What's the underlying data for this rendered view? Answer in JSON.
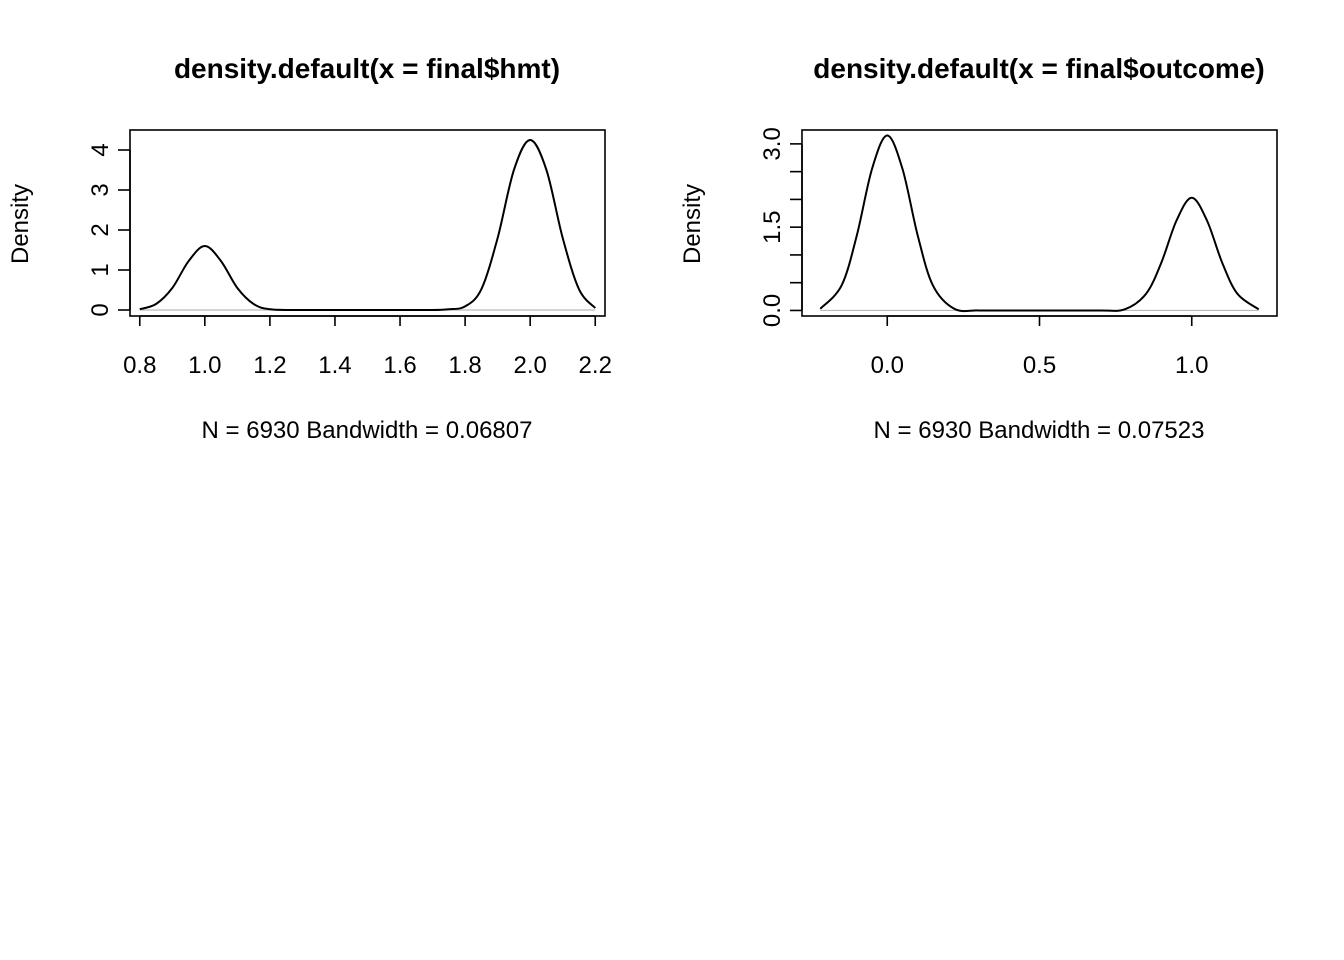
{
  "chart_data": [
    {
      "type": "line",
      "title": "density.default(x = final$hmt)",
      "xlabel": "N = 6930   Bandwidth = 0.06807",
      "ylabel": "Density",
      "xlim": [
        0.77,
        2.23
      ],
      "ylim": [
        -0.15,
        4.5
      ],
      "xticks": [
        0.8,
        1.0,
        1.2,
        1.4,
        1.6,
        1.8,
        2.0,
        2.2
      ],
      "xtick_labels": [
        "0.8",
        "1.0",
        "1.2",
        "1.4",
        "1.6",
        "1.8",
        "2.0",
        "2.2"
      ],
      "yticks": [
        0,
        1,
        2,
        3,
        4
      ],
      "ytick_labels": [
        "0",
        "1",
        "2",
        "3",
        "4"
      ],
      "grid": false,
      "baseline": 0,
      "series": [
        {
          "x": [
            0.8,
            0.85,
            0.9,
            0.95,
            1.0,
            1.05,
            1.1,
            1.15,
            1.2,
            1.3,
            1.4,
            1.5,
            1.6,
            1.7,
            1.75,
            1.8,
            1.85,
            1.9,
            1.95,
            2.0,
            2.05,
            2.1,
            2.15,
            2.2
          ],
          "y": [
            0.02,
            0.15,
            0.55,
            1.22,
            1.6,
            1.22,
            0.55,
            0.15,
            0.02,
            0.0,
            0.0,
            0.0,
            0.0,
            0.0,
            0.02,
            0.09,
            0.52,
            1.8,
            3.5,
            4.25,
            3.5,
            1.8,
            0.52,
            0.05
          ]
        }
      ]
    },
    {
      "type": "line",
      "title": "density.default(x = final$outcome)",
      "xlabel": "N = 6930   Bandwidth = 0.07523",
      "ylabel": "Density",
      "xlim": [
        -0.28,
        1.28
      ],
      "ylim": [
        -0.1,
        3.25
      ],
      "xticks": [
        0.0,
        0.5,
        1.0
      ],
      "xtick_labels": [
        "0.0",
        "0.5",
        "1.0"
      ],
      "yticks": [
        0.0,
        0.5,
        1.0,
        1.5,
        2.0,
        2.5,
        3.0
      ],
      "ytick_labels": [
        "0.0",
        "",
        "",
        "1.5",
        "",
        "",
        "3.0"
      ],
      "grid": false,
      "baseline": 0,
      "series": [
        {
          "x": [
            -0.22,
            -0.15,
            -0.1,
            -0.05,
            0.0,
            0.05,
            0.1,
            0.15,
            0.22,
            0.3,
            0.4,
            0.5,
            0.6,
            0.7,
            0.78,
            0.85,
            0.9,
            0.95,
            1.0,
            1.05,
            1.1,
            1.15,
            1.22
          ],
          "y": [
            0.03,
            0.45,
            1.35,
            2.55,
            3.15,
            2.55,
            1.35,
            0.45,
            0.03,
            0.0,
            0.0,
            0.0,
            0.0,
            0.0,
            0.02,
            0.3,
            0.86,
            1.62,
            2.03,
            1.62,
            0.86,
            0.3,
            0.02
          ]
        }
      ]
    }
  ]
}
